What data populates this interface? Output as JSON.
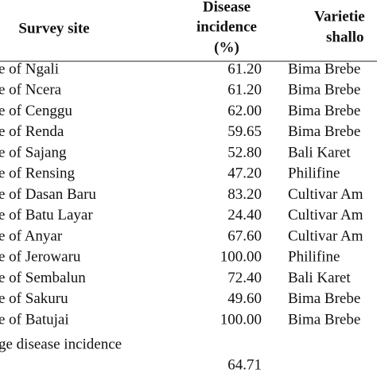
{
  "header": {
    "survey_site": "Survey site",
    "disease_incidence": [
      "Disease",
      "incidence",
      "(%)"
    ],
    "varieties": [
      "Varietie",
      "shallo"
    ]
  },
  "rows": [
    [
      "e of Ngali",
      "61.20",
      "Bima Brebe"
    ],
    [
      "e of Ncera",
      "61.20",
      "Bima Brebe"
    ],
    [
      "e of Cenggu",
      "62.00",
      "Bima Brebe"
    ],
    [
      "e of Renda",
      "59.65",
      "Bima Brebe"
    ],
    [
      "e of Sajang",
      "52.80",
      "Bali Karet"
    ],
    [
      "e of Rensing",
      "47.20",
      "Philifine"
    ],
    [
      "e of Dasan Baru",
      "83.20",
      "Cultivar Am"
    ],
    [
      "e of Batu Layar",
      "24.40",
      "Cultivar Am"
    ],
    [
      "e of Anyar",
      "67.60",
      "Cultivar Am"
    ],
    [
      "e of Jerowaru",
      "100.00",
      "Philifine"
    ],
    [
      "e of Sembalun",
      "72.40",
      "Bali Karet"
    ],
    [
      "e of Sakuru",
      "49.60",
      "Bima Brebe"
    ],
    [
      "e of Batujai",
      "100.00",
      "Bima Brebe"
    ]
  ],
  "footer": {
    "label": "ge disease incidence",
    "value": "64.71"
  }
}
